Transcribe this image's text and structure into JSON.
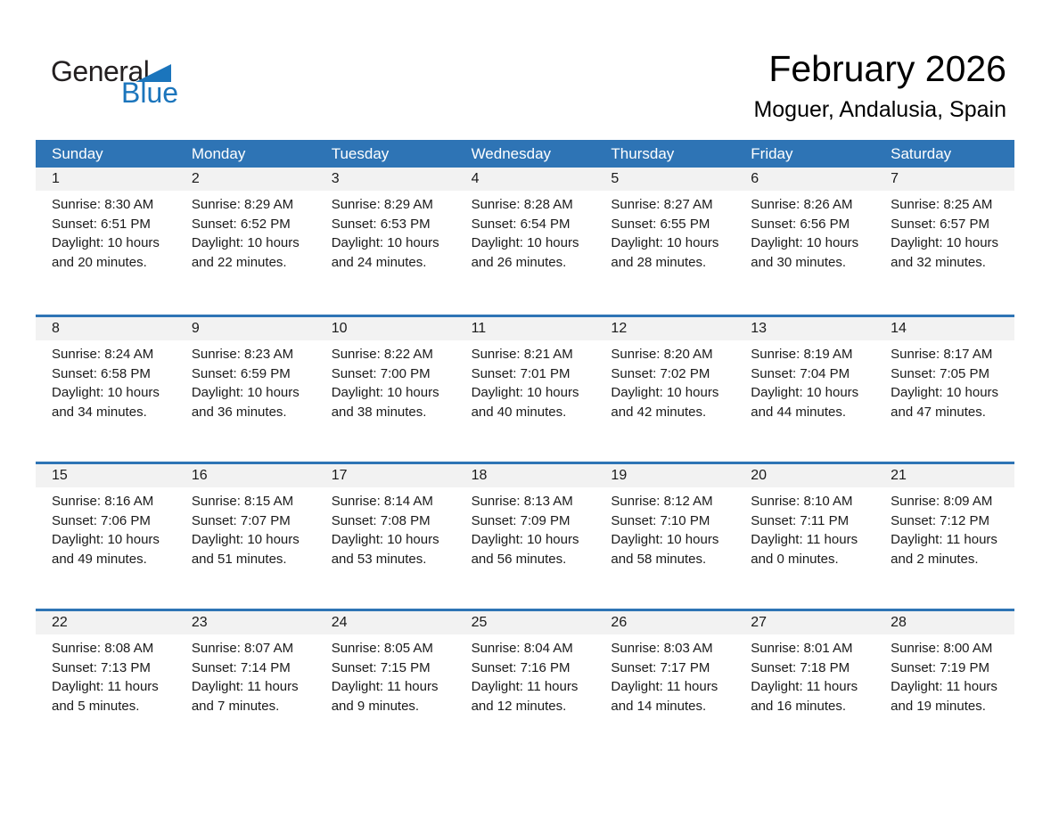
{
  "logo": {
    "word_general": "General",
    "word_blue": "Blue"
  },
  "title": {
    "month": "February 2026",
    "location": "Moguer, Andalusia, Spain"
  },
  "colors": {
    "header_bg": "#2E74B5",
    "week_divider": "#2E74B5",
    "day_band_bg": "#F2F2F2",
    "logo_blue": "#1B75BC",
    "header_text": "#FFFFFF",
    "body_text": "#1A1A1A"
  },
  "weekdays": [
    "Sunday",
    "Monday",
    "Tuesday",
    "Wednesday",
    "Thursday",
    "Friday",
    "Saturday"
  ],
  "weeks": [
    [
      {
        "date": "1",
        "sunrise": "Sunrise: 8:30 AM",
        "sunset": "Sunset: 6:51 PM",
        "daylight": "Daylight: 10 hours and 20 minutes."
      },
      {
        "date": "2",
        "sunrise": "Sunrise: 8:29 AM",
        "sunset": "Sunset: 6:52 PM",
        "daylight": "Daylight: 10 hours and 22 minutes."
      },
      {
        "date": "3",
        "sunrise": "Sunrise: 8:29 AM",
        "sunset": "Sunset: 6:53 PM",
        "daylight": "Daylight: 10 hours and 24 minutes."
      },
      {
        "date": "4",
        "sunrise": "Sunrise: 8:28 AM",
        "sunset": "Sunset: 6:54 PM",
        "daylight": "Daylight: 10 hours and 26 minutes."
      },
      {
        "date": "5",
        "sunrise": "Sunrise: 8:27 AM",
        "sunset": "Sunset: 6:55 PM",
        "daylight": "Daylight: 10 hours and 28 minutes."
      },
      {
        "date": "6",
        "sunrise": "Sunrise: 8:26 AM",
        "sunset": "Sunset: 6:56 PM",
        "daylight": "Daylight: 10 hours and 30 minutes."
      },
      {
        "date": "7",
        "sunrise": "Sunrise: 8:25 AM",
        "sunset": "Sunset: 6:57 PM",
        "daylight": "Daylight: 10 hours and 32 minutes."
      }
    ],
    [
      {
        "date": "8",
        "sunrise": "Sunrise: 8:24 AM",
        "sunset": "Sunset: 6:58 PM",
        "daylight": "Daylight: 10 hours and 34 minutes."
      },
      {
        "date": "9",
        "sunrise": "Sunrise: 8:23 AM",
        "sunset": "Sunset: 6:59 PM",
        "daylight": "Daylight: 10 hours and 36 minutes."
      },
      {
        "date": "10",
        "sunrise": "Sunrise: 8:22 AM",
        "sunset": "Sunset: 7:00 PM",
        "daylight": "Daylight: 10 hours and 38 minutes."
      },
      {
        "date": "11",
        "sunrise": "Sunrise: 8:21 AM",
        "sunset": "Sunset: 7:01 PM",
        "daylight": "Daylight: 10 hours and 40 minutes."
      },
      {
        "date": "12",
        "sunrise": "Sunrise: 8:20 AM",
        "sunset": "Sunset: 7:02 PM",
        "daylight": "Daylight: 10 hours and 42 minutes."
      },
      {
        "date": "13",
        "sunrise": "Sunrise: 8:19 AM",
        "sunset": "Sunset: 7:04 PM",
        "daylight": "Daylight: 10 hours and 44 minutes."
      },
      {
        "date": "14",
        "sunrise": "Sunrise: 8:17 AM",
        "sunset": "Sunset: 7:05 PM",
        "daylight": "Daylight: 10 hours and 47 minutes."
      }
    ],
    [
      {
        "date": "15",
        "sunrise": "Sunrise: 8:16 AM",
        "sunset": "Sunset: 7:06 PM",
        "daylight": "Daylight: 10 hours and 49 minutes."
      },
      {
        "date": "16",
        "sunrise": "Sunrise: 8:15 AM",
        "sunset": "Sunset: 7:07 PM",
        "daylight": "Daylight: 10 hours and 51 minutes."
      },
      {
        "date": "17",
        "sunrise": "Sunrise: 8:14 AM",
        "sunset": "Sunset: 7:08 PM",
        "daylight": "Daylight: 10 hours and 53 minutes."
      },
      {
        "date": "18",
        "sunrise": "Sunrise: 8:13 AM",
        "sunset": "Sunset: 7:09 PM",
        "daylight": "Daylight: 10 hours and 56 minutes."
      },
      {
        "date": "19",
        "sunrise": "Sunrise: 8:12 AM",
        "sunset": "Sunset: 7:10 PM",
        "daylight": "Daylight: 10 hours and 58 minutes."
      },
      {
        "date": "20",
        "sunrise": "Sunrise: 8:10 AM",
        "sunset": "Sunset: 7:11 PM",
        "daylight": "Daylight: 11 hours and 0 minutes."
      },
      {
        "date": "21",
        "sunrise": "Sunrise: 8:09 AM",
        "sunset": "Sunset: 7:12 PM",
        "daylight": "Daylight: 11 hours and 2 minutes."
      }
    ],
    [
      {
        "date": "22",
        "sunrise": "Sunrise: 8:08 AM",
        "sunset": "Sunset: 7:13 PM",
        "daylight": "Daylight: 11 hours and 5 minutes."
      },
      {
        "date": "23",
        "sunrise": "Sunrise: 8:07 AM",
        "sunset": "Sunset: 7:14 PM",
        "daylight": "Daylight: 11 hours and 7 minutes."
      },
      {
        "date": "24",
        "sunrise": "Sunrise: 8:05 AM",
        "sunset": "Sunset: 7:15 PM",
        "daylight": "Daylight: 11 hours and 9 minutes."
      },
      {
        "date": "25",
        "sunrise": "Sunrise: 8:04 AM",
        "sunset": "Sunset: 7:16 PM",
        "daylight": "Daylight: 11 hours and 12 minutes."
      },
      {
        "date": "26",
        "sunrise": "Sunrise: 8:03 AM",
        "sunset": "Sunset: 7:17 PM",
        "daylight": "Daylight: 11 hours and 14 minutes."
      },
      {
        "date": "27",
        "sunrise": "Sunrise: 8:01 AM",
        "sunset": "Sunset: 7:18 PM",
        "daylight": "Daylight: 11 hours and 16 minutes."
      },
      {
        "date": "28",
        "sunrise": "Sunrise: 8:00 AM",
        "sunset": "Sunset: 7:19 PM",
        "daylight": "Daylight: 11 hours and 19 minutes."
      }
    ]
  ]
}
